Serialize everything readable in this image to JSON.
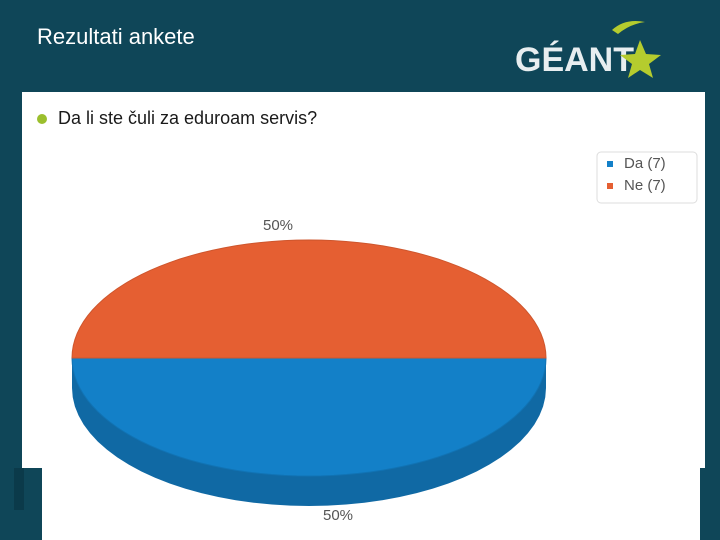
{
  "header": {
    "title": "Rezultati ankete",
    "logo": "GÉANT"
  },
  "bullet": "Da li ste čuli za eduroam servis?",
  "chart_data": {
    "type": "pie",
    "categories": [
      "Da (7)",
      "Ne (7)"
    ],
    "values": [
      50,
      50
    ],
    "value_labels": [
      "50%",
      "50%"
    ],
    "colors": [
      "#1380c8",
      "#e55f32"
    ],
    "legend": "top-right"
  }
}
